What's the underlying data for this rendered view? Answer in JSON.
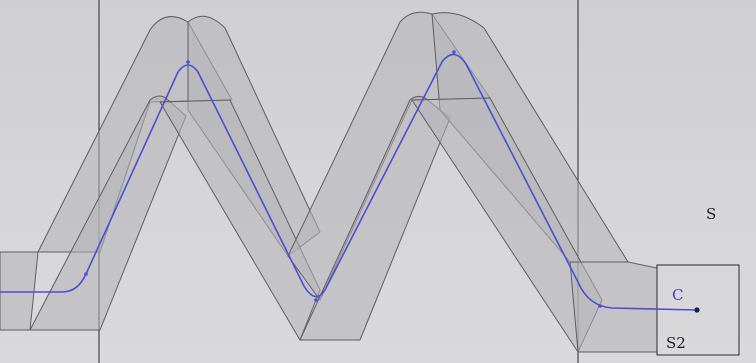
{
  "labels": {
    "s": "S",
    "c": "C",
    "s2": "S2"
  },
  "colors": {
    "background": "#d3d3d6",
    "sweep_fill": "#b6b6ba",
    "sweep_edge": "#5e5e62",
    "path_curve": "#4a4fd0",
    "sketch_line": "#2a2a2e"
  }
}
